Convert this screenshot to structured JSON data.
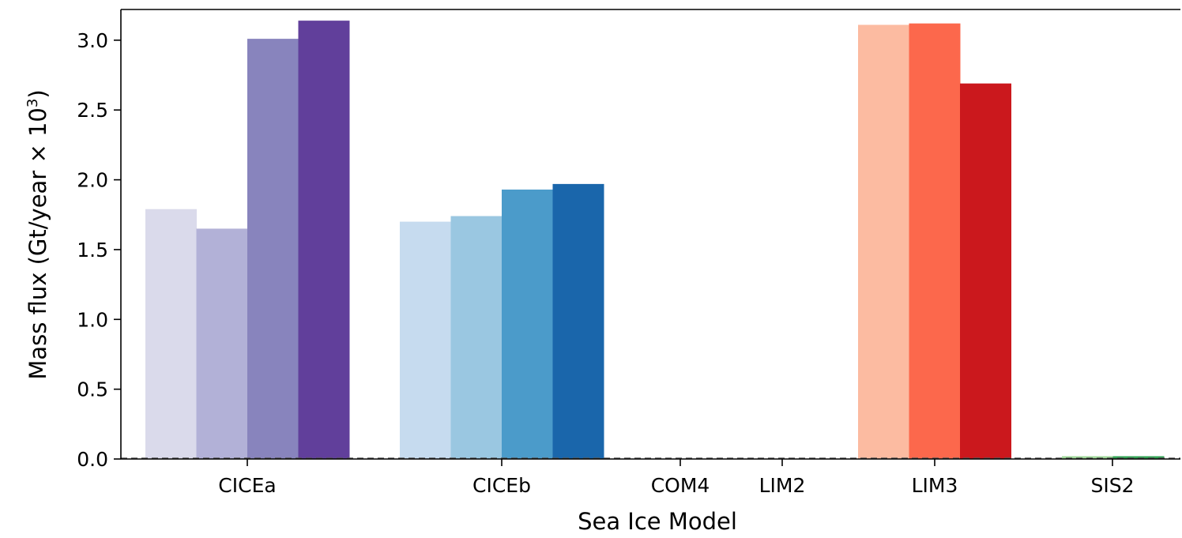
{
  "chart_data": {
    "type": "bar",
    "xlabel": "Sea Ice Model",
    "ylabel": {
      "main": "Mass flux (Gt/year × 10",
      "sup": "3",
      "close": ")"
    },
    "ylim": [
      0,
      3.22
    ],
    "yticks": [
      "0.0",
      "0.5",
      "1.0",
      "1.5",
      "2.0",
      "2.5",
      "3.0"
    ],
    "grid": false,
    "legend": "none",
    "zero_line": "dashed",
    "categories": [
      "CICEa",
      "CICEb",
      "COM4",
      "LIM2",
      "LIM3",
      "SIS2"
    ],
    "groups": [
      {
        "category": "CICEa",
        "values": [
          1.79,
          1.65,
          3.01,
          3.14
        ],
        "colors": [
          "#dadaeb",
          "#b2b1d7",
          "#8884bd",
          "#613f9b"
        ]
      },
      {
        "category": "CICEb",
        "values": [
          1.7,
          1.74,
          1.93,
          1.97
        ],
        "colors": [
          "#c6dbef",
          "#9ac7e1",
          "#4b9bca",
          "#1a66ab"
        ]
      },
      {
        "category": "COM4",
        "values": [
          0.0
        ],
        "colors": [
          "#888888"
        ]
      },
      {
        "category": "LIM2",
        "values": [
          0.0
        ],
        "colors": [
          "#888888"
        ]
      },
      {
        "category": "LIM3",
        "values": [
          3.11,
          3.12,
          2.69
        ],
        "colors": [
          "#fcbba1",
          "#fc684c",
          "#cb181d"
        ]
      },
      {
        "category": "SIS2",
        "values": [
          0.02,
          0.02
        ],
        "colors": [
          "#a1d99b",
          "#31a354"
        ]
      }
    ]
  }
}
